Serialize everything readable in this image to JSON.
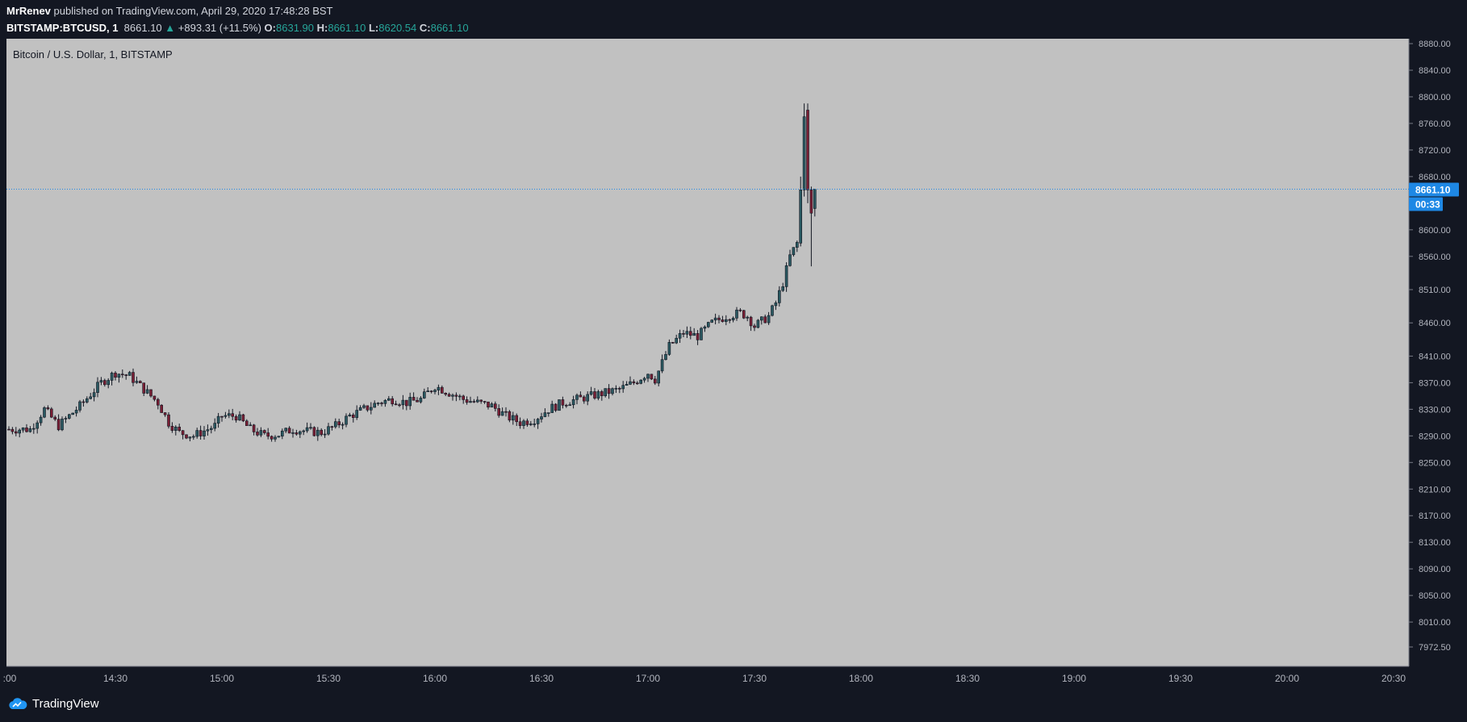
{
  "header": {
    "author": "MrRenev",
    "published_text": "published on TradingView.com, April 29, 2020 17:48:28 BST"
  },
  "legend": {
    "symbol": "BITSTAMP:BTCUSD, 1",
    "last": "8661.10",
    "change": "+893.31 (+11.5%)",
    "o_label": "O:",
    "o": "8631.90",
    "h_label": "H:",
    "h": "8661.10",
    "l_label": "L:",
    "l": "8620.54",
    "c_label": "C:",
    "c": "8661.10"
  },
  "chart_title": "Bitcoin / U.S. Dollar, 1, BITSTAMP",
  "last_price_badge": "8661.10",
  "countdown_badge": "00:33",
  "footer": {
    "brand": "TradingView"
  },
  "colors": {
    "up": "#26a69a",
    "down": "#ef5350",
    "badge": "#1e88e5",
    "plot_bg": "#c1c1c1",
    "frame_bg": "#131722",
    "candle_up": "#2a5961",
    "candle_down": "#7a1e34"
  },
  "chart_data": {
    "type": "candlestick",
    "title": "Bitcoin / U.S. Dollar, 1, BITSTAMP",
    "ytick_labels": [
      "8880.00",
      "8840.00",
      "8800.00",
      "8760.00",
      "8720.00",
      "8680.00",
      "8600.00",
      "8560.00",
      "8510.00",
      "8460.00",
      "8410.00",
      "8370.00",
      "8330.00",
      "8290.00",
      "8250.00",
      "8210.00",
      "8170.00",
      "8130.00",
      "8090.00",
      "8050.00",
      "8010.00",
      "7972.50"
    ],
    "xtick_labels": [
      ":00",
      "14:30",
      "15:00",
      "15:30",
      "16:00",
      "16:30",
      "17:00",
      "17:30",
      "18:00",
      "18:30",
      "19:00",
      "19:30",
      "20:00",
      "20:30"
    ],
    "ylim": [
      7950,
      8900
    ],
    "last_price": 8661.1,
    "anchors": [
      [
        "14:00",
        8300
      ],
      [
        "14:06",
        8300
      ],
      [
        "14:10",
        8330
      ],
      [
        "14:14",
        8305
      ],
      [
        "14:20",
        8335
      ],
      [
        "14:26",
        8370
      ],
      [
        "14:30",
        8385
      ],
      [
        "14:34",
        8380
      ],
      [
        "14:38",
        8360
      ],
      [
        "14:42",
        8340
      ],
      [
        "14:45",
        8310
      ],
      [
        "14:48",
        8295
      ],
      [
        "14:52",
        8290
      ],
      [
        "14:56",
        8300
      ],
      [
        "14:58",
        8305
      ],
      [
        "15:00",
        8320
      ],
      [
        "15:04",
        8320
      ],
      [
        "15:08",
        8300
      ],
      [
        "15:12",
        8290
      ],
      [
        "15:16",
        8292
      ],
      [
        "15:20",
        8300
      ],
      [
        "15:24",
        8297
      ],
      [
        "15:28",
        8295
      ],
      [
        "15:32",
        8305
      ],
      [
        "15:36",
        8320
      ],
      [
        "15:40",
        8330
      ],
      [
        "15:44",
        8340
      ],
      [
        "15:48",
        8345
      ],
      [
        "15:52",
        8340
      ],
      [
        "15:56",
        8345
      ],
      [
        "16:00",
        8365
      ],
      [
        "16:04",
        8355
      ],
      [
        "16:08",
        8345
      ],
      [
        "16:12",
        8340
      ],
      [
        "16:16",
        8335
      ],
      [
        "16:20",
        8320
      ],
      [
        "16:24",
        8310
      ],
      [
        "16:28",
        8315
      ],
      [
        "16:32",
        8330
      ],
      [
        "16:36",
        8340
      ],
      [
        "16:40",
        8345
      ],
      [
        "16:44",
        8350
      ],
      [
        "16:48",
        8355
      ],
      [
        "16:52",
        8360
      ],
      [
        "16:56",
        8370
      ],
      [
        "17:00",
        8385
      ],
      [
        "17:02",
        8375
      ],
      [
        "17:04",
        8400
      ],
      [
        "17:06",
        8425
      ],
      [
        "17:10",
        8445
      ],
      [
        "17:14",
        8440
      ],
      [
        "17:18",
        8460
      ],
      [
        "17:22",
        8470
      ],
      [
        "17:26",
        8475
      ],
      [
        "17:28",
        8470
      ],
      [
        "17:30",
        8455
      ],
      [
        "17:34",
        8470
      ],
      [
        "17:36",
        8490
      ],
      [
        "17:38",
        8520
      ],
      [
        "17:40",
        8560
      ],
      [
        "17:42",
        8580
      ]
    ],
    "spike_candles": [
      {
        "time": "17:43",
        "open": 8580,
        "high": 8680,
        "low": 8575,
        "close": 8660
      },
      {
        "time": "17:44",
        "open": 8660,
        "high": 8790,
        "low": 8650,
        "close": 8770
      },
      {
        "time": "17:45",
        "open": 8780,
        "high": 8790,
        "low": 8640,
        "close": 8660
      },
      {
        "time": "17:46",
        "open": 8660,
        "high": 8665,
        "low": 8545,
        "close": 8625
      },
      {
        "time": "17:47",
        "open": 8632,
        "high": 8661,
        "low": 8620,
        "close": 8661
      }
    ]
  }
}
